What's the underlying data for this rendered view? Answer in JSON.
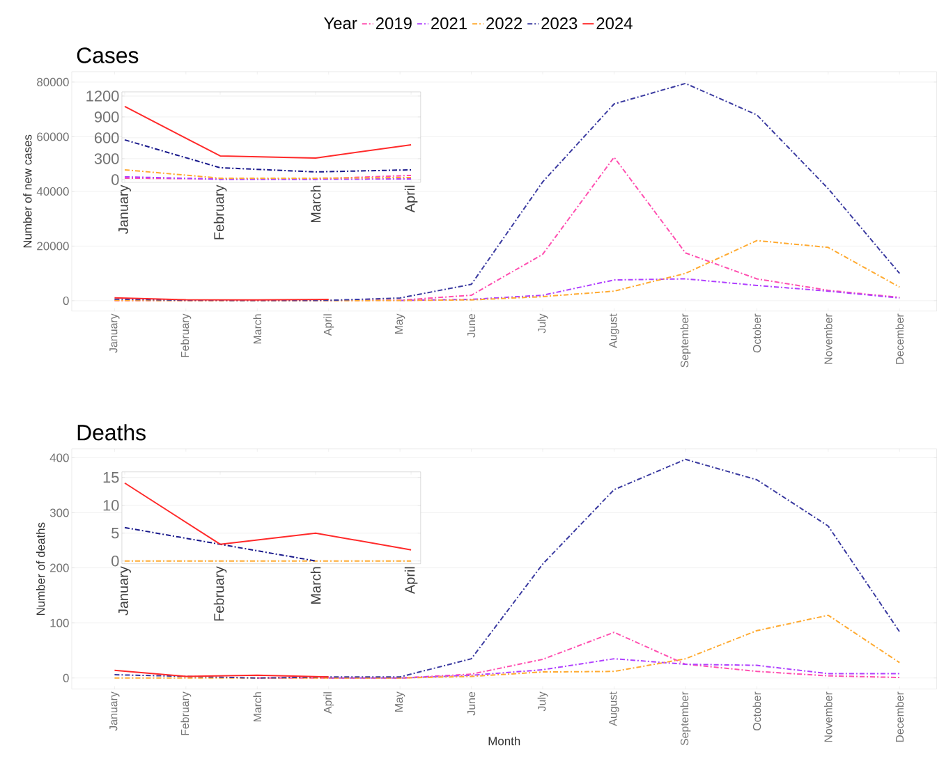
{
  "chart_data": [
    {
      "type": "line",
      "title": "Cases",
      "ylabel": "Number of new cases",
      "legend_title": "Year",
      "legend": "top",
      "grid": "y",
      "categories": [
        "January",
        "February",
        "March",
        "April",
        "May",
        "June",
        "July",
        "August",
        "September",
        "October",
        "November",
        "December"
      ],
      "ylim": [
        -3800,
        83800
      ],
      "yticks": [
        0,
        20000,
        40000,
        60000,
        80000
      ],
      "series": [
        {
          "name": "2019",
          "color": "#ff4fb0",
          "line_style": "dashed",
          "values": [
            20,
            10,
            10,
            60,
            200,
            2000,
            17000,
            52500,
            17500,
            8000,
            3800,
            1200
          ]
        },
        {
          "name": "2021",
          "color": "#b040ff",
          "line_style": "dashed",
          "values": [
            null,
            null,
            null,
            null,
            100,
            500,
            2000,
            7600,
            8000,
            5600,
            3500,
            1000
          ]
        },
        {
          "name": "2022",
          "color": "#ffaa30",
          "line_style": "dashed",
          "values": [
            140,
            20,
            20,
            30,
            100,
            300,
            1500,
            3500,
            10000,
            22000,
            19500,
            5000
          ]
        },
        {
          "name": "2023",
          "color": "#3a3aa0",
          "line_style": "dashed",
          "values": [
            570,
            170,
            110,
            140,
            1000,
            6000,
            43500,
            72000,
            79500,
            68000,
            41000,
            10000
          ]
        },
        {
          "name": "2024",
          "color": "#ff2a2a",
          "line_style": "solid",
          "values": [
            1050,
            340,
            310,
            500,
            null,
            null,
            null,
            null,
            null,
            null,
            null,
            null
          ]
        }
      ]
    },
    {
      "type": "line",
      "grid": "y",
      "categories": [
        "January",
        "February",
        "March",
        "April"
      ],
      "ylim": [
        -40,
        1260
      ],
      "yticks": [
        0,
        300,
        600,
        900,
        1200
      ],
      "series": [
        {
          "color": "#ff4fb0",
          "line_style": "dashed",
          "values": [
            20,
            10,
            10,
            60
          ]
        },
        {
          "color": "#b040ff",
          "line_style": "dashed",
          "values": [
            40,
            5,
            5,
            10
          ]
        },
        {
          "color": "#ffaa30",
          "line_style": "dashed",
          "values": [
            140,
            20,
            20,
            30
          ]
        },
        {
          "color": "#1a1a8c",
          "line_style": "dashed",
          "values": [
            570,
            170,
            110,
            140
          ]
        },
        {
          "color": "#ff2a2a",
          "line_style": "solid",
          "values": [
            1050,
            340,
            310,
            500
          ]
        }
      ]
    },
    {
      "type": "line",
      "title": "Deaths",
      "ylabel": "Number of deaths",
      "xlabel": "Month",
      "grid": "y",
      "categories": [
        "January",
        "February",
        "March",
        "April",
        "May",
        "June",
        "July",
        "August",
        "September",
        "October",
        "November",
        "December"
      ],
      "ylim": [
        -20,
        416
      ],
      "yticks": [
        0,
        100,
        200,
        300,
        400
      ],
      "series": [
        {
          "color": "#ff4fb0",
          "line_style": "dashed",
          "values": [
            null,
            null,
            0,
            0,
            0,
            7,
            34,
            83,
            25,
            12,
            4,
            1
          ]
        },
        {
          "color": "#b040ff",
          "line_style": "dashed",
          "values": [
            null,
            null,
            null,
            0,
            0,
            5,
            15,
            35,
            25,
            23,
            8,
            8
          ]
        },
        {
          "color": "#ffaa30",
          "line_style": "dashed",
          "values": [
            0,
            0,
            0,
            0,
            0,
            3,
            11,
            12,
            35,
            86,
            114,
            28
          ]
        },
        {
          "color": "#3a3aa0",
          "line_style": "dashed",
          "values": [
            6,
            3,
            0,
            2,
            2,
            35,
            207,
            342,
            397,
            360,
            276,
            84
          ]
        },
        {
          "color": "#ff2a2a",
          "line_style": "solid",
          "values": [
            14,
            3,
            5,
            2,
            null,
            null,
            null,
            null,
            null,
            null,
            null,
            null
          ]
        }
      ]
    },
    {
      "type": "line",
      "grid": "y",
      "categories": [
        "January",
        "February",
        "March",
        "April"
      ],
      "ylim": [
        -0.5,
        16
      ],
      "yticks": [
        0,
        5,
        10,
        15
      ],
      "series": [
        {
          "color": "#ffaa30",
          "line_style": "dashed",
          "values": [
            0,
            0,
            0,
            0
          ]
        },
        {
          "color": "#1a1a8c",
          "line_style": "dashed",
          "values": [
            6,
            3,
            0,
            null
          ]
        },
        {
          "color": "#ff2a2a",
          "line_style": "solid",
          "values": [
            14,
            3,
            5,
            2
          ]
        }
      ]
    }
  ]
}
